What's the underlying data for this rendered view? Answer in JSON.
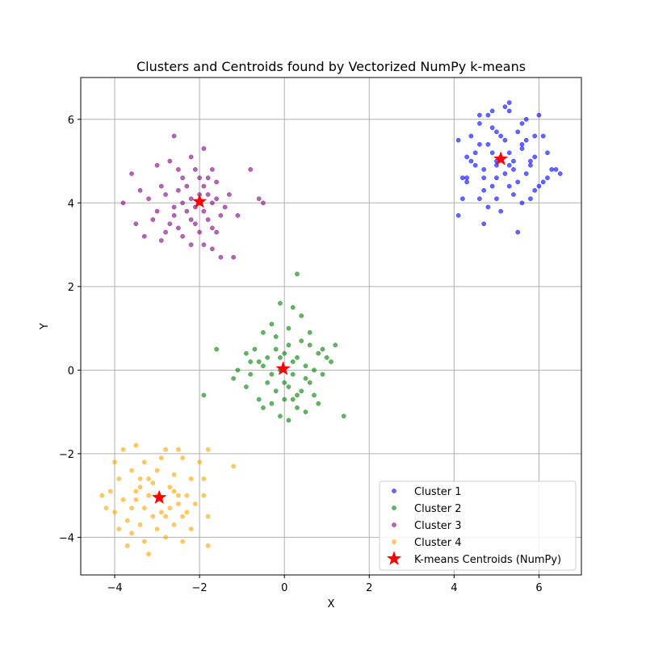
{
  "chart_data": {
    "type": "scatter",
    "title": "Clusters and Centroids found by Vectorized NumPy k-means",
    "xlabel": "X",
    "ylabel": "Y",
    "xlim": [
      -4.8,
      7.0
    ],
    "ylim": [
      -4.9,
      7.0
    ],
    "xticks": [
      -4,
      -2,
      0,
      2,
      4,
      6
    ],
    "yticks": [
      -4,
      -2,
      0,
      2,
      4,
      6
    ],
    "xtick_labels": [
      "−4",
      "−2",
      "0",
      "2",
      "4",
      "6"
    ],
    "ytick_labels": [
      "−4",
      "−2",
      "0",
      "2",
      "4",
      "6"
    ],
    "grid": true,
    "legend_position": "lower-right",
    "series": [
      {
        "name": "Cluster 1",
        "color": "#0000ff",
        "points": [
          [
            4.9,
            5.8
          ],
          [
            5.1,
            5.6
          ],
          [
            4.6,
            5.4
          ],
          [
            5.3,
            5.2
          ],
          [
            5.8,
            5.0
          ],
          [
            4.7,
            4.8
          ],
          [
            5.0,
            4.6
          ],
          [
            5.5,
            4.5
          ],
          [
            4.4,
            5.0
          ],
          [
            5.9,
            5.6
          ],
          [
            5.2,
            6.3
          ],
          [
            4.8,
            6.1
          ],
          [
            5.6,
            5.9
          ],
          [
            4.3,
            4.6
          ],
          [
            6.1,
            4.5
          ],
          [
            5.0,
            4.1
          ],
          [
            5.4,
            4.2
          ],
          [
            4.7,
            4.3
          ],
          [
            4.2,
            4.1
          ],
          [
            4.1,
            3.7
          ],
          [
            4.8,
            3.9
          ],
          [
            5.1,
            3.8
          ],
          [
            5.6,
            4.0
          ],
          [
            6.3,
            4.8
          ],
          [
            6.5,
            4.7
          ],
          [
            6.0,
            4.4
          ],
          [
            5.7,
            4.7
          ],
          [
            5.3,
            4.9
          ],
          [
            4.5,
            5.2
          ],
          [
            4.9,
            5.2
          ],
          [
            5.2,
            5.5
          ],
          [
            5.6,
            5.4
          ],
          [
            5.9,
            5.1
          ],
          [
            6.0,
            6.1
          ],
          [
            5.7,
            6.0
          ],
          [
            5.3,
            6.2
          ],
          [
            4.6,
            6.1
          ],
          [
            4.4,
            5.6
          ],
          [
            4.1,
            5.5
          ],
          [
            4.2,
            4.6
          ],
          [
            4.3,
            4.5
          ],
          [
            4.7,
            4.6
          ],
          [
            5.0,
            4.9
          ],
          [
            5.4,
            4.8
          ],
          [
            5.8,
            4.9
          ],
          [
            6.2,
            5.2
          ],
          [
            6.1,
            5.6
          ],
          [
            5.5,
            5.7
          ],
          [
            5.0,
            5.7
          ],
          [
            4.6,
            5.9
          ],
          [
            4.9,
            6.2
          ],
          [
            5.3,
            6.4
          ],
          [
            5.5,
            3.3
          ],
          [
            4.7,
            3.5
          ],
          [
            5.8,
            4.1
          ],
          [
            6.2,
            4.6
          ],
          [
            4.5,
            4.9
          ],
          [
            5.1,
            5.1
          ],
          [
            5.6,
            5.3
          ],
          [
            4.8,
            5.4
          ],
          [
            5.2,
            4.7
          ],
          [
            4.6,
            4.1
          ],
          [
            5.9,
            4.3
          ],
          [
            6.4,
            4.8
          ],
          [
            4.3,
            5.1
          ],
          [
            5.0,
            5.0
          ],
          [
            5.4,
            5.0
          ],
          [
            5.7,
            5.5
          ],
          [
            4.9,
            4.4
          ],
          [
            5.3,
            4.4
          ]
        ]
      },
      {
        "name": "Cluster 2",
        "color": "#008000",
        "points": [
          [
            0.3,
            2.3
          ],
          [
            -0.1,
            1.6
          ],
          [
            0.2,
            1.5
          ],
          [
            0.4,
            1.3
          ],
          [
            -0.3,
            1.1
          ],
          [
            0.1,
            1.0
          ],
          [
            -0.5,
            0.9
          ],
          [
            0.6,
            0.9
          ],
          [
            1.2,
            0.6
          ],
          [
            -1.6,
            0.5
          ],
          [
            -0.2,
            0.5
          ],
          [
            0.0,
            0.4
          ],
          [
            0.3,
            0.3
          ],
          [
            0.8,
            0.4
          ],
          [
            1.1,
            0.2
          ],
          [
            -0.8,
            0.2
          ],
          [
            -0.5,
            0.1
          ],
          [
            -0.1,
            0.0
          ],
          [
            0.2,
            -0.1
          ],
          [
            0.5,
            -0.2
          ],
          [
            0.9,
            -0.1
          ],
          [
            -1.2,
            -0.2
          ],
          [
            -0.9,
            -0.4
          ],
          [
            -0.4,
            -0.3
          ],
          [
            0.1,
            -0.4
          ],
          [
            0.4,
            -0.5
          ],
          [
            0.7,
            -0.6
          ],
          [
            -0.6,
            -0.7
          ],
          [
            -0.3,
            -0.8
          ],
          [
            0.0,
            -0.7
          ],
          [
            0.3,
            -0.9
          ],
          [
            0.5,
            -1.0
          ],
          [
            0.1,
            -1.2
          ],
          [
            -0.1,
            -1.1
          ],
          [
            1.4,
            -1.1
          ],
          [
            -1.9,
            -0.6
          ],
          [
            -1.1,
            0.0
          ],
          [
            -0.7,
            0.5
          ],
          [
            0.6,
            0.6
          ],
          [
            1.0,
            0.3
          ],
          [
            -0.2,
            0.8
          ],
          [
            0.4,
            0.7
          ],
          [
            -0.4,
            0.3
          ],
          [
            0.2,
            0.2
          ],
          [
            -0.3,
            -0.1
          ],
          [
            0.0,
            -0.3
          ],
          [
            0.6,
            -0.3
          ],
          [
            -0.8,
            -0.1
          ],
          [
            0.8,
            -0.8
          ],
          [
            -0.5,
            -0.9
          ],
          [
            0.3,
            -0.6
          ],
          [
            -0.9,
            0.4
          ],
          [
            0.9,
            0.5
          ],
          [
            0.1,
            0.6
          ],
          [
            -0.6,
            0.2
          ],
          [
            0.5,
            0.1
          ],
          [
            -0.2,
            -0.5
          ],
          [
            0.2,
            -0.7
          ],
          [
            -0.1,
            0.3
          ],
          [
            0.7,
            0.0
          ]
        ]
      },
      {
        "name": "Cluster 3",
        "color": "#800080",
        "points": [
          [
            -2.6,
            5.6
          ],
          [
            -1.9,
            5.3
          ],
          [
            -2.2,
            5.1
          ],
          [
            -2.7,
            5.0
          ],
          [
            -3.0,
            4.9
          ],
          [
            -1.7,
            4.8
          ],
          [
            -0.8,
            4.8
          ],
          [
            -3.6,
            4.7
          ],
          [
            -2.4,
            4.6
          ],
          [
            -2.0,
            4.6
          ],
          [
            -1.6,
            4.5
          ],
          [
            -2.9,
            4.4
          ],
          [
            -2.5,
            4.3
          ],
          [
            -1.8,
            4.2
          ],
          [
            -1.3,
            4.2
          ],
          [
            -3.2,
            4.1
          ],
          [
            -2.2,
            4.1
          ],
          [
            -2.0,
            4.0
          ],
          [
            -1.7,
            4.0
          ],
          [
            -0.5,
            4.0
          ],
          [
            -3.8,
            4.0
          ],
          [
            -2.6,
            3.9
          ],
          [
            -2.3,
            3.8
          ],
          [
            -1.9,
            3.8
          ],
          [
            -1.5,
            3.7
          ],
          [
            -3.1,
            3.6
          ],
          [
            -2.7,
            3.5
          ],
          [
            -2.1,
            3.5
          ],
          [
            -1.7,
            3.4
          ],
          [
            -3.5,
            3.5
          ],
          [
            -2.8,
            3.3
          ],
          [
            -2.4,
            3.2
          ],
          [
            -2.0,
            3.3
          ],
          [
            -1.6,
            3.3
          ],
          [
            -3.3,
            3.2
          ],
          [
            -2.2,
            3.0
          ],
          [
            -1.9,
            3.0
          ],
          [
            -1.7,
            2.9
          ],
          [
            -1.2,
            2.7
          ],
          [
            -1.5,
            2.7
          ],
          [
            -2.5,
            4.8
          ],
          [
            -2.1,
            4.8
          ],
          [
            -1.8,
            4.6
          ],
          [
            -2.3,
            4.4
          ],
          [
            -2.8,
            4.2
          ],
          [
            -2.4,
            4.0
          ],
          [
            -2.0,
            4.2
          ],
          [
            -1.6,
            4.1
          ],
          [
            -1.1,
            3.7
          ],
          [
            -0.6,
            4.1
          ],
          [
            -3.0,
            3.8
          ],
          [
            -2.6,
            3.7
          ],
          [
            -2.2,
            3.6
          ],
          [
            -1.8,
            3.6
          ],
          [
            -1.4,
            3.9
          ],
          [
            -3.4,
            4.3
          ],
          [
            -2.9,
            3.1
          ],
          [
            -2.5,
            3.4
          ],
          [
            -2.1,
            3.9
          ],
          [
            -1.9,
            4.4
          ]
        ]
      },
      {
        "name": "Cluster 4",
        "color": "#ffa500",
        "points": [
          [
            -3.5,
            -1.8
          ],
          [
            -3.8,
            -1.9
          ],
          [
            -2.8,
            -1.9
          ],
          [
            -2.5,
            -1.9
          ],
          [
            -1.8,
            -1.9
          ],
          [
            -2.9,
            -2.1
          ],
          [
            -2.4,
            -2.1
          ],
          [
            -4.0,
            -2.2
          ],
          [
            -3.3,
            -2.2
          ],
          [
            -2.0,
            -2.2
          ],
          [
            -3.6,
            -2.4
          ],
          [
            -3.0,
            -2.4
          ],
          [
            -2.6,
            -2.5
          ],
          [
            -3.9,
            -2.6
          ],
          [
            -3.4,
            -2.6
          ],
          [
            -2.2,
            -2.6
          ],
          [
            -1.9,
            -2.6
          ],
          [
            -3.1,
            -2.7
          ],
          [
            -2.7,
            -2.8
          ],
          [
            -4.1,
            -2.9
          ],
          [
            -3.5,
            -2.9
          ],
          [
            -3.2,
            -3.0
          ],
          [
            -2.3,
            -3.0
          ],
          [
            -1.9,
            -3.0
          ],
          [
            -4.3,
            -3.0
          ],
          [
            -3.8,
            -3.1
          ],
          [
            -2.9,
            -3.1
          ],
          [
            -2.5,
            -3.2
          ],
          [
            -2.1,
            -3.2
          ],
          [
            -3.6,
            -3.3
          ],
          [
            -3.3,
            -3.3
          ],
          [
            -2.7,
            -3.3
          ],
          [
            -4.0,
            -3.4
          ],
          [
            -3.1,
            -3.5
          ],
          [
            -2.8,
            -3.5
          ],
          [
            -2.4,
            -3.5
          ],
          [
            -1.8,
            -3.5
          ],
          [
            -3.7,
            -3.6
          ],
          [
            -3.4,
            -3.7
          ],
          [
            -2.6,
            -3.7
          ],
          [
            -3.9,
            -3.8
          ],
          [
            -3.0,
            -3.8
          ],
          [
            -2.2,
            -3.8
          ],
          [
            -3.6,
            -3.9
          ],
          [
            -2.8,
            -4.0
          ],
          [
            -3.3,
            -4.1
          ],
          [
            -2.4,
            -4.1
          ],
          [
            -3.7,
            -4.2
          ],
          [
            -1.8,
            -4.2
          ],
          [
            -3.2,
            -4.4
          ],
          [
            -1.2,
            -2.3
          ],
          [
            -4.2,
            -3.3
          ],
          [
            -3.0,
            -3.0
          ],
          [
            -2.6,
            -2.9
          ],
          [
            -3.4,
            -2.8
          ],
          [
            -2.9,
            -3.4
          ],
          [
            -3.2,
            -2.6
          ],
          [
            -2.5,
            -3.0
          ],
          [
            -3.5,
            -3.1
          ],
          [
            -2.3,
            -3.4
          ]
        ]
      }
    ],
    "centroids": {
      "name": "K-means Centroids (NumPy)",
      "color": "#ff0000",
      "points": [
        [
          5.1,
          5.05
        ],
        [
          -0.03,
          0.03
        ],
        [
          -2.0,
          4.03
        ],
        [
          -2.95,
          -3.05
        ]
      ]
    }
  }
}
